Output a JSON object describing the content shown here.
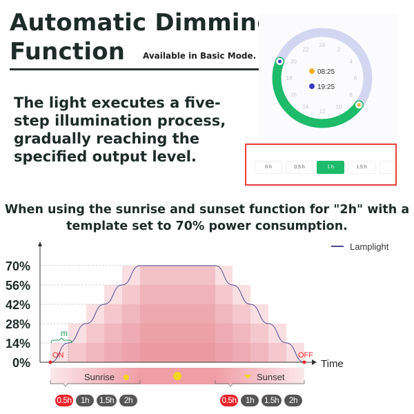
{
  "header": {
    "title_line1": "Automatic Dimming",
    "title_line2": "Function",
    "mode_note": "Available in Basic Mode.",
    "description": "The light executes a five-step illumination process, gradually reaching the specified output level."
  },
  "clock": {
    "hour_labels": [
      "24",
      "2",
      "4",
      "6",
      "8",
      "10",
      "12",
      "14",
      "16",
      "18",
      "20",
      "22"
    ],
    "sunrise_time": "08:25",
    "sunset_time": "19:25",
    "active_color": "#1dbb6a",
    "inactive_color": "#d3d6f0",
    "sunrise_icon": "sunrise-icon",
    "sunset_icon": "sunset-icon"
  },
  "duration_selector": {
    "options": [
      {
        "label": "0 h",
        "active": false
      },
      {
        "label": "0.5 h",
        "active": false
      },
      {
        "label": "1 h",
        "active": true
      },
      {
        "label": "1.5 h",
        "active": false
      }
    ]
  },
  "explanation": "When using the sunrise and sunset function for \"2h\" with a template set to 70% power consumption.",
  "chart_data": {
    "type": "line",
    "ylim": [
      0,
      70
    ],
    "y_ticks": [
      "0%",
      "14%",
      "28%",
      "42%",
      "56%",
      "70%"
    ],
    "y_values": [
      0,
      14,
      28,
      42,
      56,
      70
    ],
    "xlabel": "Time",
    "grid": "dashed horizontal at tick levels",
    "legend": {
      "position": "top-right",
      "entries": [
        "Lamplight"
      ]
    },
    "series": [
      {
        "name": "Lamplight",
        "color": "#4b4a8c",
        "steps": [
          0,
          14,
          28,
          42,
          56,
          70,
          70,
          56,
          42,
          28,
          14,
          0
        ]
      }
    ],
    "annotations": {
      "on": "ON",
      "off": "OFF",
      "step_width": "m"
    },
    "phases": {
      "sunrise": "Sunrise",
      "sunset": "Sunset"
    },
    "sunrise_durations": [
      {
        "label": "0.5h",
        "selected": true
      },
      {
        "label": "1h",
        "selected": false
      },
      {
        "label": "1.5h",
        "selected": false
      },
      {
        "label": "2h",
        "selected": false
      }
    ],
    "sunset_durations": [
      {
        "label": "0.5h",
        "selected": true
      },
      {
        "label": "1h",
        "selected": false
      },
      {
        "label": "1.5h",
        "selected": false
      },
      {
        "label": "2h",
        "selected": false
      }
    ],
    "colors": {
      "bars": "#e88b96",
      "on_off": "#e8232b",
      "m_label": "#1f9a57"
    }
  }
}
